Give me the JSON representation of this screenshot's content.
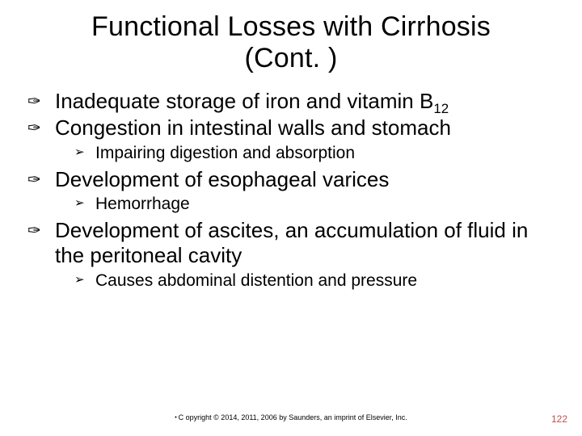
{
  "title_line1": "Functional Losses with Cirrhosis",
  "title_line2": "(Cont. )",
  "bullets": {
    "b1": {
      "text_pre": "Inadequate storage of iron and vitamin B",
      "sub": "12"
    },
    "b2": {
      "text": "Congestion in intestinal walls and stomach"
    },
    "b2s1": {
      "text": "Impairing digestion and absorption"
    },
    "b3": {
      "text": "Development of esophageal varices"
    },
    "b3s1": {
      "text": "Hemorrhage"
    },
    "b4": {
      "text": "Development of ascites, an accumulation of fluid in the peritoneal cavity"
    },
    "b4s1": {
      "text": "Causes abdominal distention and pressure"
    }
  },
  "glyphs": {
    "lvl1": "✑",
    "lvl2": "➢"
  },
  "footer": "C opyright © 2014, 2011, 2006 by Saunders, an imprint of Elsevier, Inc.",
  "page_number": "122",
  "colors": {
    "text": "#000000",
    "background": "#ffffff",
    "page_number": "#c0504d"
  }
}
